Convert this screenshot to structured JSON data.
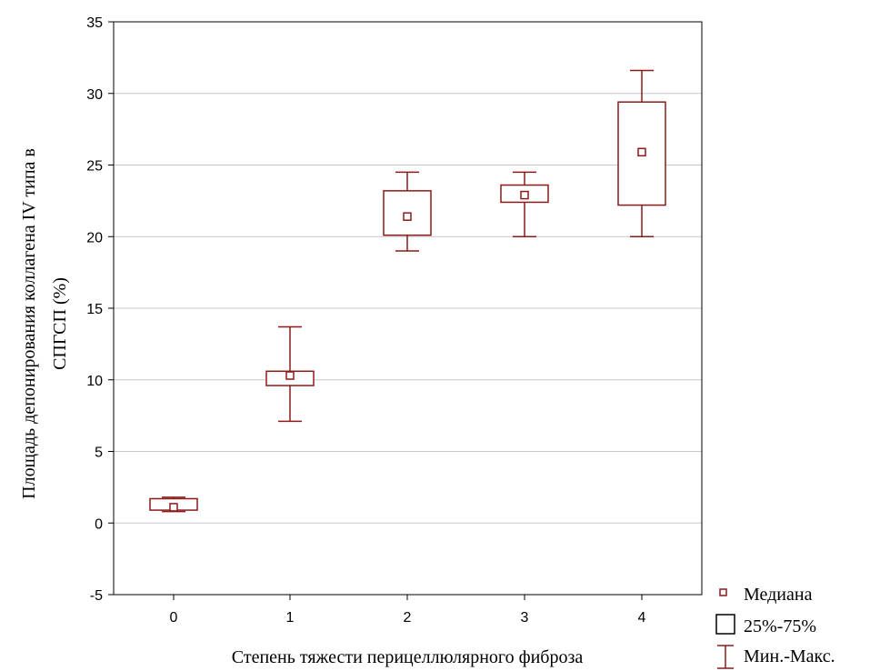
{
  "chart_data": {
    "type": "box",
    "title": "",
    "xlabel": "Степень тяжести перицеллюлярного фиброза",
    "ylabel_lines": [
      "Площадь депонирования коллагена IV типа в",
      "СПГСП (%)"
    ],
    "ylim": [
      -5,
      35
    ],
    "yticks": [
      -5,
      0,
      5,
      10,
      15,
      20,
      25,
      30,
      35
    ],
    "grid": true,
    "categories": [
      "0",
      "1",
      "2",
      "3",
      "4"
    ],
    "boxes": [
      {
        "category": "0",
        "min": 0.8,
        "q1": 0.9,
        "median": 1.1,
        "q3": 1.7,
        "max": 1.8
      },
      {
        "category": "1",
        "min": 7.1,
        "q1": 9.6,
        "median": 10.3,
        "q3": 10.6,
        "max": 13.7
      },
      {
        "category": "2",
        "min": 19.0,
        "q1": 20.1,
        "median": 21.4,
        "q3": 23.2,
        "max": 24.5
      },
      {
        "category": "3",
        "min": 20.0,
        "q1": 22.4,
        "median": 22.9,
        "q3": 23.6,
        "max": 24.5
      },
      {
        "category": "4",
        "min": 20.0,
        "q1": 22.2,
        "median": 25.9,
        "q3": 29.4,
        "max": 31.6
      }
    ],
    "legend": {
      "position": "bottom-right",
      "entries": [
        {
          "marker": "median-square",
          "label": "Медиана"
        },
        {
          "marker": "box",
          "label": "25%-75%"
        },
        {
          "marker": "whisker",
          "label": "Мин.-Макс."
        }
      ]
    },
    "colors": {
      "series": "#8b1a1a",
      "box": "#000000",
      "grid": "#c8c8c8",
      "axis": "#000000"
    }
  }
}
